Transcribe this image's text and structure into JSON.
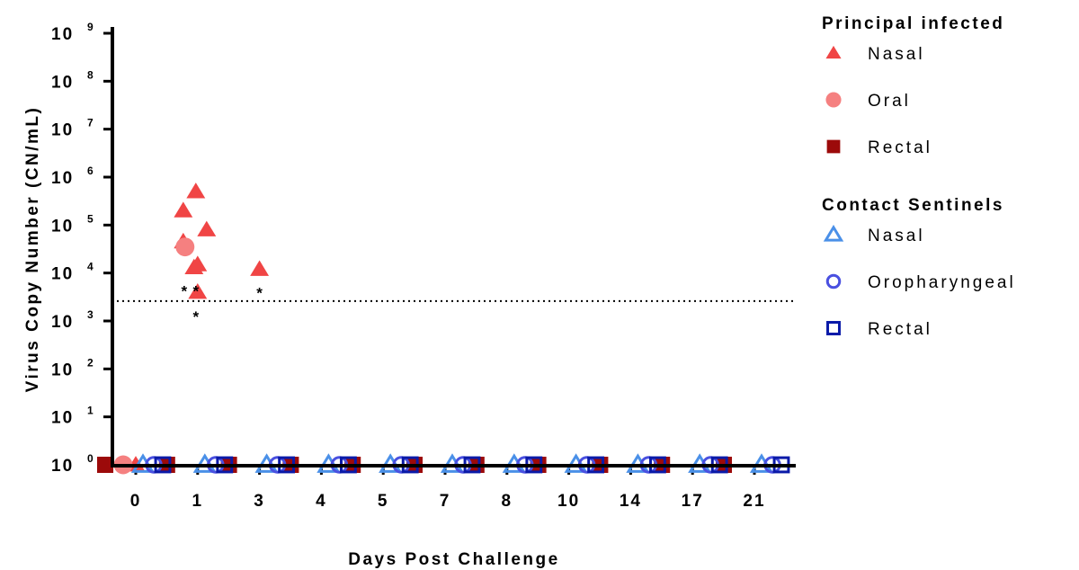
{
  "chart_data": {
    "type": "scatter",
    "xlabel": "Days Post Challenge",
    "ylabel": "Virus Copy Number  (CN/mL)",
    "categories": [
      "0",
      "1",
      "3",
      "4",
      "5",
      "7",
      "8",
      "10",
      "14",
      "17",
      "21"
    ],
    "y_scale": "log10",
    "ylim": [
      1,
      1000000000
    ],
    "y_ticks": [
      {
        "base": "10",
        "exp": "0",
        "value": 1
      },
      {
        "base": "10",
        "exp": "1",
        "value": 10
      },
      {
        "base": "10",
        "exp": "2",
        "value": 100
      },
      {
        "base": "10",
        "exp": "3",
        "value": 1000
      },
      {
        "base": "10",
        "exp": "4",
        "value": 10000
      },
      {
        "base": "10",
        "exp": "5",
        "value": 100000
      },
      {
        "base": "10",
        "exp": "6",
        "value": 1000000
      },
      {
        "base": "10",
        "exp": "7",
        "value": 10000000
      },
      {
        "base": "10",
        "exp": "8",
        "value": 100000000
      },
      {
        "base": "10",
        "exp": "9",
        "value": 1000000000
      }
    ],
    "detection_limit": 2600,
    "legend_groups": [
      {
        "title": "Principal infected",
        "entries": [
          {
            "name": "Nasal",
            "marker": "triangle-filled",
            "color": "#f04545"
          },
          {
            "name": "Oral",
            "marker": "circle-filled",
            "color": "#f58080"
          },
          {
            "name": "Rectal",
            "marker": "square-filled",
            "color": "#9c0a0a"
          }
        ]
      },
      {
        "title": "Contact Sentinels",
        "entries": [
          {
            "name": "Nasal",
            "marker": "triangle-open",
            "color": "#4a90e8"
          },
          {
            "name": "Oropharyngeal",
            "marker": "circle-open",
            "color": "#4a50e0"
          },
          {
            "name": "Rectal",
            "marker": "square-open",
            "color": "#0a1aa8"
          }
        ]
      }
    ],
    "series": [
      {
        "name": "Nasal",
        "group": "Principal infected",
        "marker": "triangle-filled",
        "color": "#f04545",
        "points": [
          {
            "x": "0",
            "y": 1
          },
          {
            "x": "1",
            "y": 200000
          },
          {
            "x": "1",
            "y": 500000
          },
          {
            "x": "1",
            "y": 80000
          },
          {
            "x": "1",
            "y": 45000
          },
          {
            "x": "1",
            "y": 13000
          },
          {
            "x": "1",
            "y": 15000
          },
          {
            "x": "1",
            "y": 4000
          },
          {
            "x": "3",
            "y": 12000
          }
        ]
      },
      {
        "name": "Oral",
        "group": "Principal infected",
        "marker": "circle-filled",
        "color": "#f58080",
        "points": [
          {
            "x": "0",
            "y": 1
          },
          {
            "x": "1",
            "y": 35000
          }
        ]
      },
      {
        "name": "Rectal",
        "group": "Principal infected",
        "marker": "square-filled",
        "color": "#9c0a0a",
        "points": [
          {
            "x": "0",
            "y": 1
          },
          {
            "x": "1",
            "y": 1
          },
          {
            "x": "3",
            "y": 1
          },
          {
            "x": "4",
            "y": 1
          },
          {
            "x": "5",
            "y": 1
          },
          {
            "x": "7",
            "y": 1
          },
          {
            "x": "8",
            "y": 1
          },
          {
            "x": "10",
            "y": 1
          },
          {
            "x": "14",
            "y": 1
          },
          {
            "x": "17",
            "y": 1
          },
          {
            "x": "21",
            "y": 1
          }
        ]
      },
      {
        "name": "Nasal",
        "group": "Contact Sentinels",
        "marker": "triangle-open",
        "color": "#4a90e8",
        "points": [
          {
            "x": "0",
            "y": 1
          },
          {
            "x": "1",
            "y": 1
          },
          {
            "x": "3",
            "y": 1
          },
          {
            "x": "4",
            "y": 1
          },
          {
            "x": "5",
            "y": 1
          },
          {
            "x": "7",
            "y": 1
          },
          {
            "x": "8",
            "y": 1
          },
          {
            "x": "10",
            "y": 1
          },
          {
            "x": "14",
            "y": 1
          },
          {
            "x": "17",
            "y": 1
          },
          {
            "x": "21",
            "y": 1
          }
        ]
      },
      {
        "name": "Oropharyngeal",
        "group": "Contact Sentinels",
        "marker": "circle-open",
        "color": "#4a50e0",
        "points": [
          {
            "x": "0",
            "y": 1
          },
          {
            "x": "1",
            "y": 1
          },
          {
            "x": "3",
            "y": 1
          },
          {
            "x": "4",
            "y": 1
          },
          {
            "x": "5",
            "y": 1
          },
          {
            "x": "7",
            "y": 1
          },
          {
            "x": "8",
            "y": 1
          },
          {
            "x": "10",
            "y": 1
          },
          {
            "x": "14",
            "y": 1
          },
          {
            "x": "17",
            "y": 1
          },
          {
            "x": "21",
            "y": 1
          }
        ]
      },
      {
        "name": "Rectal",
        "group": "Contact Sentinels",
        "marker": "square-open",
        "color": "#0a1aa8",
        "points": [
          {
            "x": "0",
            "y": 1
          },
          {
            "x": "1",
            "y": 1
          },
          {
            "x": "3",
            "y": 1
          },
          {
            "x": "4",
            "y": 1
          },
          {
            "x": "5",
            "y": 1
          },
          {
            "x": "7",
            "y": 1
          },
          {
            "x": "8",
            "y": 1
          },
          {
            "x": "10",
            "y": 1
          },
          {
            "x": "14",
            "y": 1
          },
          {
            "x": "17",
            "y": 1
          },
          {
            "x": "21",
            "y": 1
          }
        ]
      }
    ],
    "annotations": [
      {
        "text": "*",
        "x": "1",
        "y": 5500
      },
      {
        "text": "*",
        "x": "1",
        "y": 5500
      },
      {
        "text": "*",
        "x": "1",
        "y": 1600
      },
      {
        "text": "*",
        "x": "3",
        "y": 5000
      }
    ]
  }
}
